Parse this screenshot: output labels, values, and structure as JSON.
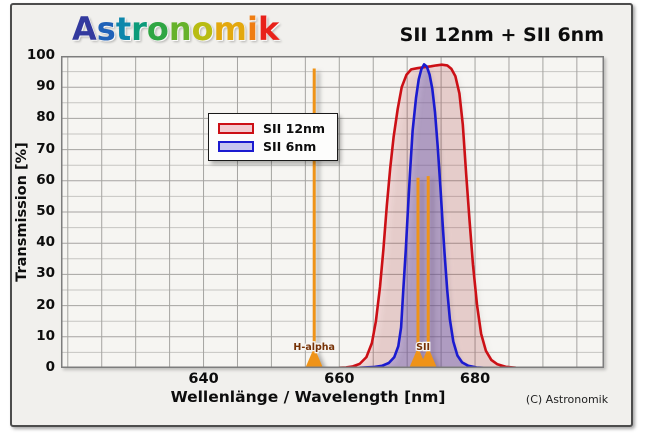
{
  "header": {
    "logo": {
      "letters": [
        {
          "ch": "A",
          "color": "#333a9e"
        },
        {
          "ch": "s",
          "color": "#2062b8"
        },
        {
          "ch": "t",
          "color": "#0e87ab"
        },
        {
          "ch": "r",
          "color": "#0c9b7a"
        },
        {
          "ch": "o",
          "color": "#2fa643"
        },
        {
          "ch": "n",
          "color": "#66b22b"
        },
        {
          "ch": "o",
          "color": "#b8bc13"
        },
        {
          "ch": "m",
          "color": "#e3a80e"
        },
        {
          "ch": "i",
          "color": "#ef7d12"
        },
        {
          "ch": "k",
          "color": "#e8211a"
        }
      ]
    },
    "title": "SII 12nm + SII 6nm"
  },
  "legend": {
    "items": [
      {
        "label": "SII 12nm",
        "stroke": "#cc1016",
        "fill": "#f2ccd1"
      },
      {
        "label": "SII 6nm",
        "stroke": "#1b1bd0",
        "fill": "#c7c6ef"
      }
    ]
  },
  "footer": {
    "copyright": "(C) Astronomik"
  },
  "chart_data": {
    "type": "line",
    "title": "SII 12nm + SII 6nm",
    "xlabel": "Wellenlänge / Wavelength [nm]",
    "ylabel": "Transmission [%]",
    "xlim": [
      619,
      699
    ],
    "ylim": [
      0,
      100
    ],
    "x_ticks": [
      640,
      660,
      680
    ],
    "y_ticks": [
      0,
      10,
      20,
      30,
      40,
      50,
      60,
      70,
      80,
      90,
      100
    ],
    "x_grid_step": 5,
    "y_major_step": 10,
    "y_minor_step": 5,
    "grid": true,
    "legend_position": "upper-left-inside",
    "colors": {
      "plot_bg": "#f6f5f2",
      "grid_major": "#a5a4a1",
      "grid_minor": "#c6c5c2",
      "plot_border": "#7d7d7d",
      "emission": "#ef9318",
      "emission_label": "#773206"
    },
    "series": [
      {
        "name": "SII 12nm",
        "color": "#cc1016",
        "fill": "rgba(200,25,35,0.14)",
        "points": [
          [
            619,
            0
          ],
          [
            648,
            0
          ],
          [
            656,
            0
          ],
          [
            660,
            0.1
          ],
          [
            661,
            0.2
          ],
          [
            662,
            0.5
          ],
          [
            663,
            1.3
          ],
          [
            664,
            3.5
          ],
          [
            664.8,
            8
          ],
          [
            665.4,
            15
          ],
          [
            666,
            26
          ],
          [
            666.5,
            38
          ],
          [
            667,
            52
          ],
          [
            667.5,
            64
          ],
          [
            668,
            74
          ],
          [
            668.6,
            83
          ],
          [
            669.2,
            90
          ],
          [
            669.9,
            94
          ],
          [
            670.6,
            95.7
          ],
          [
            671.5,
            96.1
          ],
          [
            672.5,
            96.4
          ],
          [
            673.5,
            96.7
          ],
          [
            674.3,
            97
          ],
          [
            675.1,
            97.2
          ],
          [
            675.9,
            97
          ],
          [
            676.5,
            95.9
          ],
          [
            677.1,
            93.5
          ],
          [
            677.7,
            88
          ],
          [
            678.2,
            78
          ],
          [
            678.7,
            62
          ],
          [
            679.2,
            47
          ],
          [
            679.7,
            33
          ],
          [
            680.3,
            20
          ],
          [
            680.9,
            11
          ],
          [
            681.6,
            5.5
          ],
          [
            682.4,
            2.6
          ],
          [
            683.3,
            1.2
          ],
          [
            684.5,
            0.4
          ],
          [
            686,
            0.1
          ],
          [
            688,
            0
          ],
          [
            699,
            0
          ]
        ]
      },
      {
        "name": "SII 6nm",
        "color": "#1b1bd0",
        "fill": "rgba(70,70,200,0.28)",
        "points": [
          [
            619,
            0
          ],
          [
            660,
            0
          ],
          [
            663,
            0.1
          ],
          [
            665,
            0.3
          ],
          [
            666.3,
            0.7
          ],
          [
            667.3,
            1.6
          ],
          [
            668.1,
            3.5
          ],
          [
            668.7,
            7
          ],
          [
            669.1,
            13
          ],
          [
            669.4,
            24
          ],
          [
            669.8,
            38
          ],
          [
            670.1,
            50
          ],
          [
            670.4,
            62
          ],
          [
            670.8,
            76
          ],
          [
            671.3,
            86.5
          ],
          [
            671.7,
            92.5
          ],
          [
            672.1,
            95.8
          ],
          [
            672.5,
            97.3
          ],
          [
            672.9,
            96.6
          ],
          [
            673.3,
            94
          ],
          [
            673.7,
            89.5
          ],
          [
            674.1,
            82
          ],
          [
            674.5,
            71
          ],
          [
            674.9,
            58
          ],
          [
            675.2,
            47
          ],
          [
            675.5,
            37
          ],
          [
            675.9,
            25
          ],
          [
            676.3,
            15.5
          ],
          [
            676.8,
            8.5
          ],
          [
            677.4,
            4
          ],
          [
            678.1,
            1.8
          ],
          [
            679,
            0.7
          ],
          [
            680.2,
            0.2
          ],
          [
            682,
            0
          ],
          [
            699,
            0
          ]
        ]
      }
    ],
    "emission_lines": [
      {
        "label": "H-alpha",
        "wavelengths": [
          656.3
        ],
        "heights": [
          96
        ]
      },
      {
        "label": "SII",
        "wavelengths": [
          671.6,
          673.1
        ],
        "heights": [
          61,
          61.5
        ]
      }
    ]
  }
}
